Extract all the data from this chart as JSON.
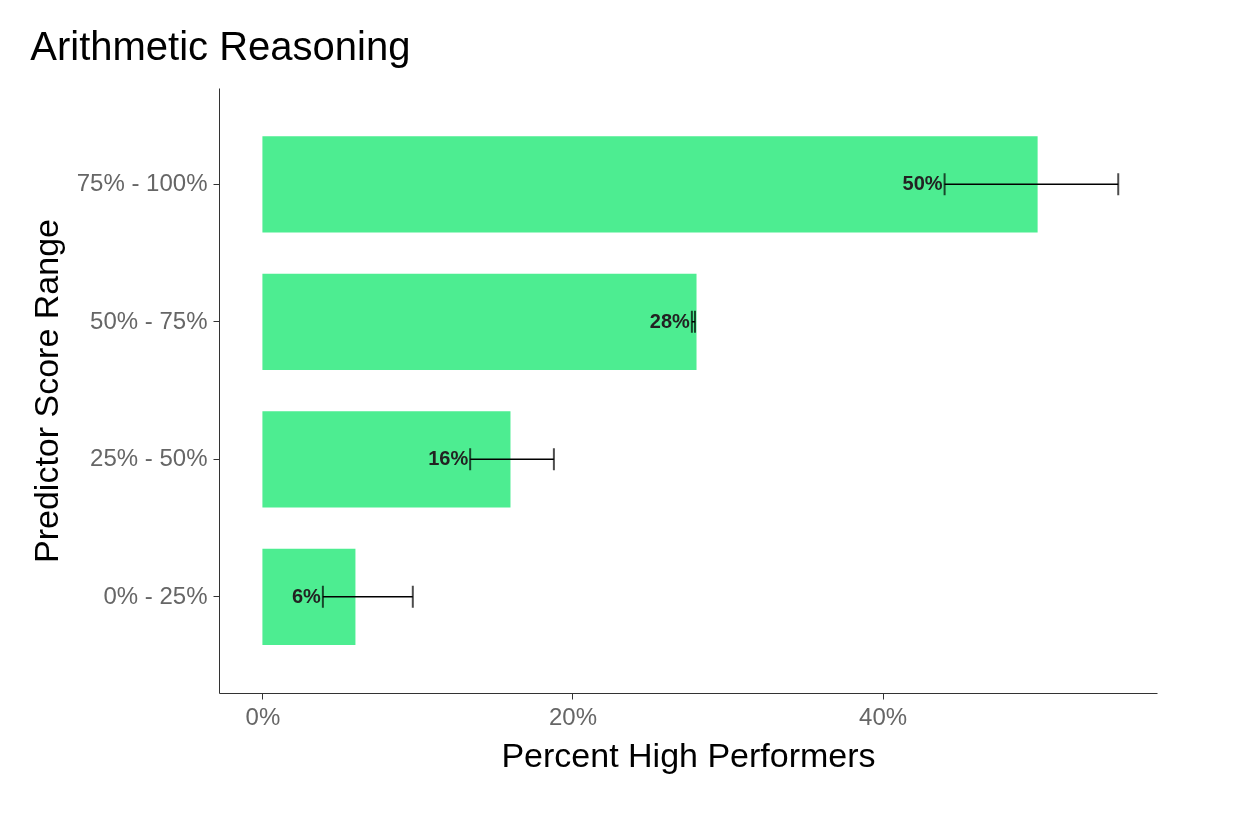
{
  "chart_data": {
    "type": "bar",
    "orientation": "horizontal",
    "title": "Arithmetic Reasoning",
    "xlabel": "Percent High Performers",
    "ylabel": "Predictor Score Range",
    "categories": [
      "75% - 100%",
      "50% - 75%",
      "25% - 50%",
      "0% - 25%"
    ],
    "values": [
      50,
      28,
      16,
      6
    ],
    "errors": [
      [
        44,
        55.2
      ],
      [
        27.7,
        27.9
      ],
      [
        13.4,
        18.8
      ],
      [
        3.9,
        9.7
      ]
    ],
    "value_labels": [
      "50%",
      "28%",
      "16%",
      "6%"
    ],
    "color": "#4ded91",
    "xlim": [
      -2.8,
      57.7
    ],
    "xticks": [
      {
        "value": 0,
        "label": "0%"
      },
      {
        "value": 20,
        "label": "20%"
      },
      {
        "value": 40,
        "label": "40%"
      }
    ],
    "grid": false
  }
}
